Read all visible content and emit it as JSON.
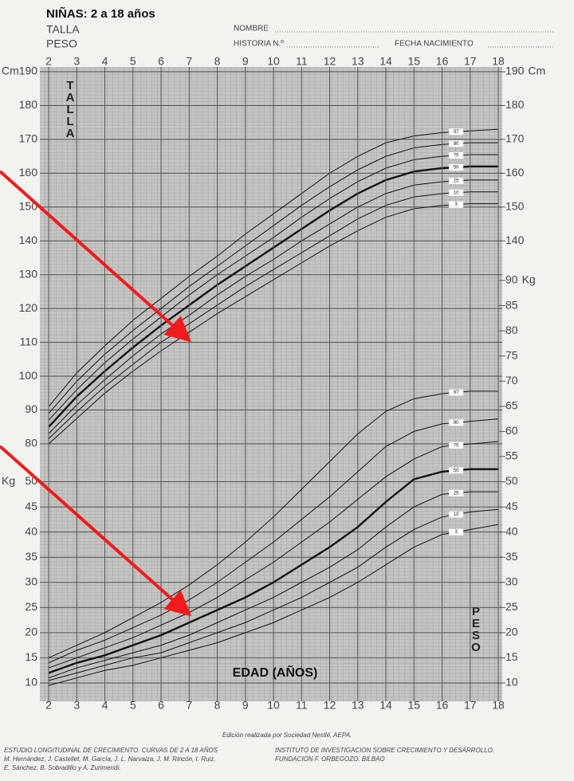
{
  "header": {
    "title": "NIÑAS: 2 a 18 años",
    "lines": [
      "TALLA",
      "PESO"
    ],
    "fields": [
      "NOMBRE",
      "HISTORIA N.º",
      "FECHA NACIMIENTO"
    ]
  },
  "chart_data": [
    {
      "type": "line",
      "axis_label": "TALLA",
      "unit": "Cm",
      "x": [
        2,
        3,
        4,
        5,
        6,
        7,
        8,
        9,
        10,
        11,
        12,
        13,
        14,
        15,
        16,
        17,
        18
      ],
      "xlim": [
        2,
        18
      ],
      "xticks": [
        2,
        3,
        4,
        5,
        6,
        7,
        8,
        9,
        10,
        11,
        12,
        13,
        14,
        15,
        16,
        17,
        18
      ],
      "ylim": [
        80,
        190
      ],
      "yticks": [
        80,
        90,
        100,
        110,
        120,
        130,
        140,
        150,
        160,
        170,
        180,
        190
      ],
      "y2lim": [
        80,
        190
      ],
      "y2ticks": [
        140,
        150,
        160,
        170,
        180,
        190
      ],
      "grid": true,
      "series": [
        {
          "name": "97",
          "color": "#111111",
          "line_width": 1,
          "values": [
            91,
            101,
            109,
            116.5,
            123,
            129.5,
            135.5,
            142,
            148,
            154,
            160,
            165,
            169,
            171,
            172,
            172.5,
            173
          ]
        },
        {
          "name": "90",
          "color": "#111111",
          "line_width": 1,
          "values": [
            89,
            98.5,
            106.5,
            113.5,
            120,
            126.5,
            132.5,
            138.5,
            144.5,
            150.5,
            156,
            161,
            165,
            167.5,
            168.5,
            169,
            169
          ]
        },
        {
          "name": "75",
          "color": "#111111",
          "line_width": 1,
          "values": [
            87,
            96,
            104,
            111,
            117.5,
            124,
            130,
            135.5,
            141,
            147,
            152.5,
            157.5,
            161.5,
            164,
            165,
            165.5,
            165.5
          ]
        },
        {
          "name": "50",
          "color": "#111111",
          "line_width": 2.4,
          "values": [
            85,
            94,
            101.5,
            108.5,
            115,
            121,
            127,
            132.5,
            138,
            143.5,
            149,
            154,
            158,
            160.5,
            161.5,
            162,
            162
          ]
        },
        {
          "name": "25",
          "color": "#111111",
          "line_width": 1,
          "values": [
            83,
            91.5,
            99,
            106,
            112.5,
            118,
            124,
            129.5,
            134.5,
            140,
            145,
            150,
            154,
            156.5,
            157.5,
            158,
            158
          ]
        },
        {
          "name": "10",
          "color": "#111111",
          "line_width": 1,
          "values": [
            81.5,
            89.5,
            97,
            103.5,
            110,
            115.5,
            121,
            126.5,
            131.5,
            136.5,
            141.5,
            146.5,
            150.5,
            153,
            154,
            154.5,
            154.5
          ]
        },
        {
          "name": "3",
          "color": "#111111",
          "line_width": 1,
          "values": [
            80,
            87.5,
            95,
            101.5,
            107.5,
            113,
            118.5,
            123.5,
            128.5,
            133.5,
            138.5,
            143,
            147,
            149.5,
            150.5,
            151,
            151
          ]
        }
      ]
    },
    {
      "type": "line",
      "axis_label": "PESO",
      "x_label": "EDAD (AÑOS)",
      "unit": "Kg",
      "x": [
        2,
        3,
        4,
        5,
        6,
        7,
        8,
        9,
        10,
        11,
        12,
        13,
        14,
        15,
        16,
        17,
        18
      ],
      "xlim": [
        2,
        18
      ],
      "xticks": [
        2,
        3,
        4,
        5,
        6,
        7,
        8,
        9,
        10,
        11,
        12,
        13,
        14,
        15,
        16,
        17,
        18
      ],
      "ylim": [
        10,
        90
      ],
      "yticks": [
        10,
        15,
        20,
        25,
        30,
        35,
        40,
        45,
        50
      ],
      "y2lim": [
        10,
        90
      ],
      "y2ticks": [
        10,
        15,
        20,
        25,
        30,
        35,
        40,
        45,
        50,
        55,
        60,
        65,
        70,
        75,
        80,
        85,
        90
      ],
      "grid": true,
      "series": [
        {
          "name": "97",
          "color": "#111111",
          "line_width": 1,
          "values": [
            15,
            17.5,
            20,
            23,
            26,
            29.5,
            33.5,
            38,
            43,
            48.5,
            54,
            59.5,
            64,
            66.5,
            67.5,
            68,
            68
          ]
        },
        {
          "name": "90",
          "color": "#111111",
          "line_width": 1,
          "values": [
            14,
            16.5,
            18.5,
            21,
            23.5,
            26.5,
            30,
            34,
            38,
            42.5,
            47,
            52,
            57,
            60,
            61.5,
            62,
            62.5
          ]
        },
        {
          "name": "75",
          "color": "#111111",
          "line_width": 1,
          "values": [
            13,
            15,
            17,
            19,
            21.5,
            24,
            27,
            30.5,
            34,
            38,
            42,
            46.5,
            51,
            54.5,
            57,
            57.5,
            58
          ]
        },
        {
          "name": "50",
          "color": "#111111",
          "line_width": 2.4,
          "values": [
            12,
            14,
            15.5,
            17.5,
            19.5,
            22,
            24.5,
            27,
            30,
            33.5,
            37,
            41,
            46,
            50.5,
            52,
            52.5,
            52.5
          ]
        },
        {
          "name": "25",
          "color": "#111111",
          "line_width": 1,
          "values": [
            11,
            13,
            14.5,
            16,
            17.5,
            19.5,
            22,
            24.5,
            27,
            30,
            33,
            36.5,
            41,
            45,
            47.5,
            48,
            48
          ]
        },
        {
          "name": "10",
          "color": "#111111",
          "line_width": 1,
          "values": [
            10.5,
            12,
            13.5,
            15,
            16,
            18,
            20,
            22,
            24.5,
            27,
            30,
            33,
            37,
            40.5,
            43,
            44,
            44.5
          ]
        },
        {
          "name": "3",
          "color": "#111111",
          "line_width": 1,
          "values": [
            9.5,
            11,
            12.5,
            13.5,
            15,
            16.5,
            18,
            20,
            22,
            24.5,
            27,
            30,
            33.5,
            37,
            39.5,
            40.5,
            41.5
          ]
        }
      ]
    }
  ],
  "footer": {
    "credit": "Edición realizada por Sociedad Nestlé, AEPA.",
    "left": [
      "ESTUDIO LONGITUDINAL DE CRECIMIENTO. CURVAS DE 2 A 18 AÑOS",
      "M. Hernández, J. Castellet, M. García, J. L. Narvaiza, J. M. Rincón, I. Ruiz,",
      "E. Sánchez, B. Sobradillo y A. Zurimendi."
    ],
    "right": [
      "INSTITUTO DE INVESTIGACION SOBRE CRECIMIENTO Y DESARROLLO.",
      "FUNDACION F. ORBEGOZO. BILBAO"
    ]
  }
}
